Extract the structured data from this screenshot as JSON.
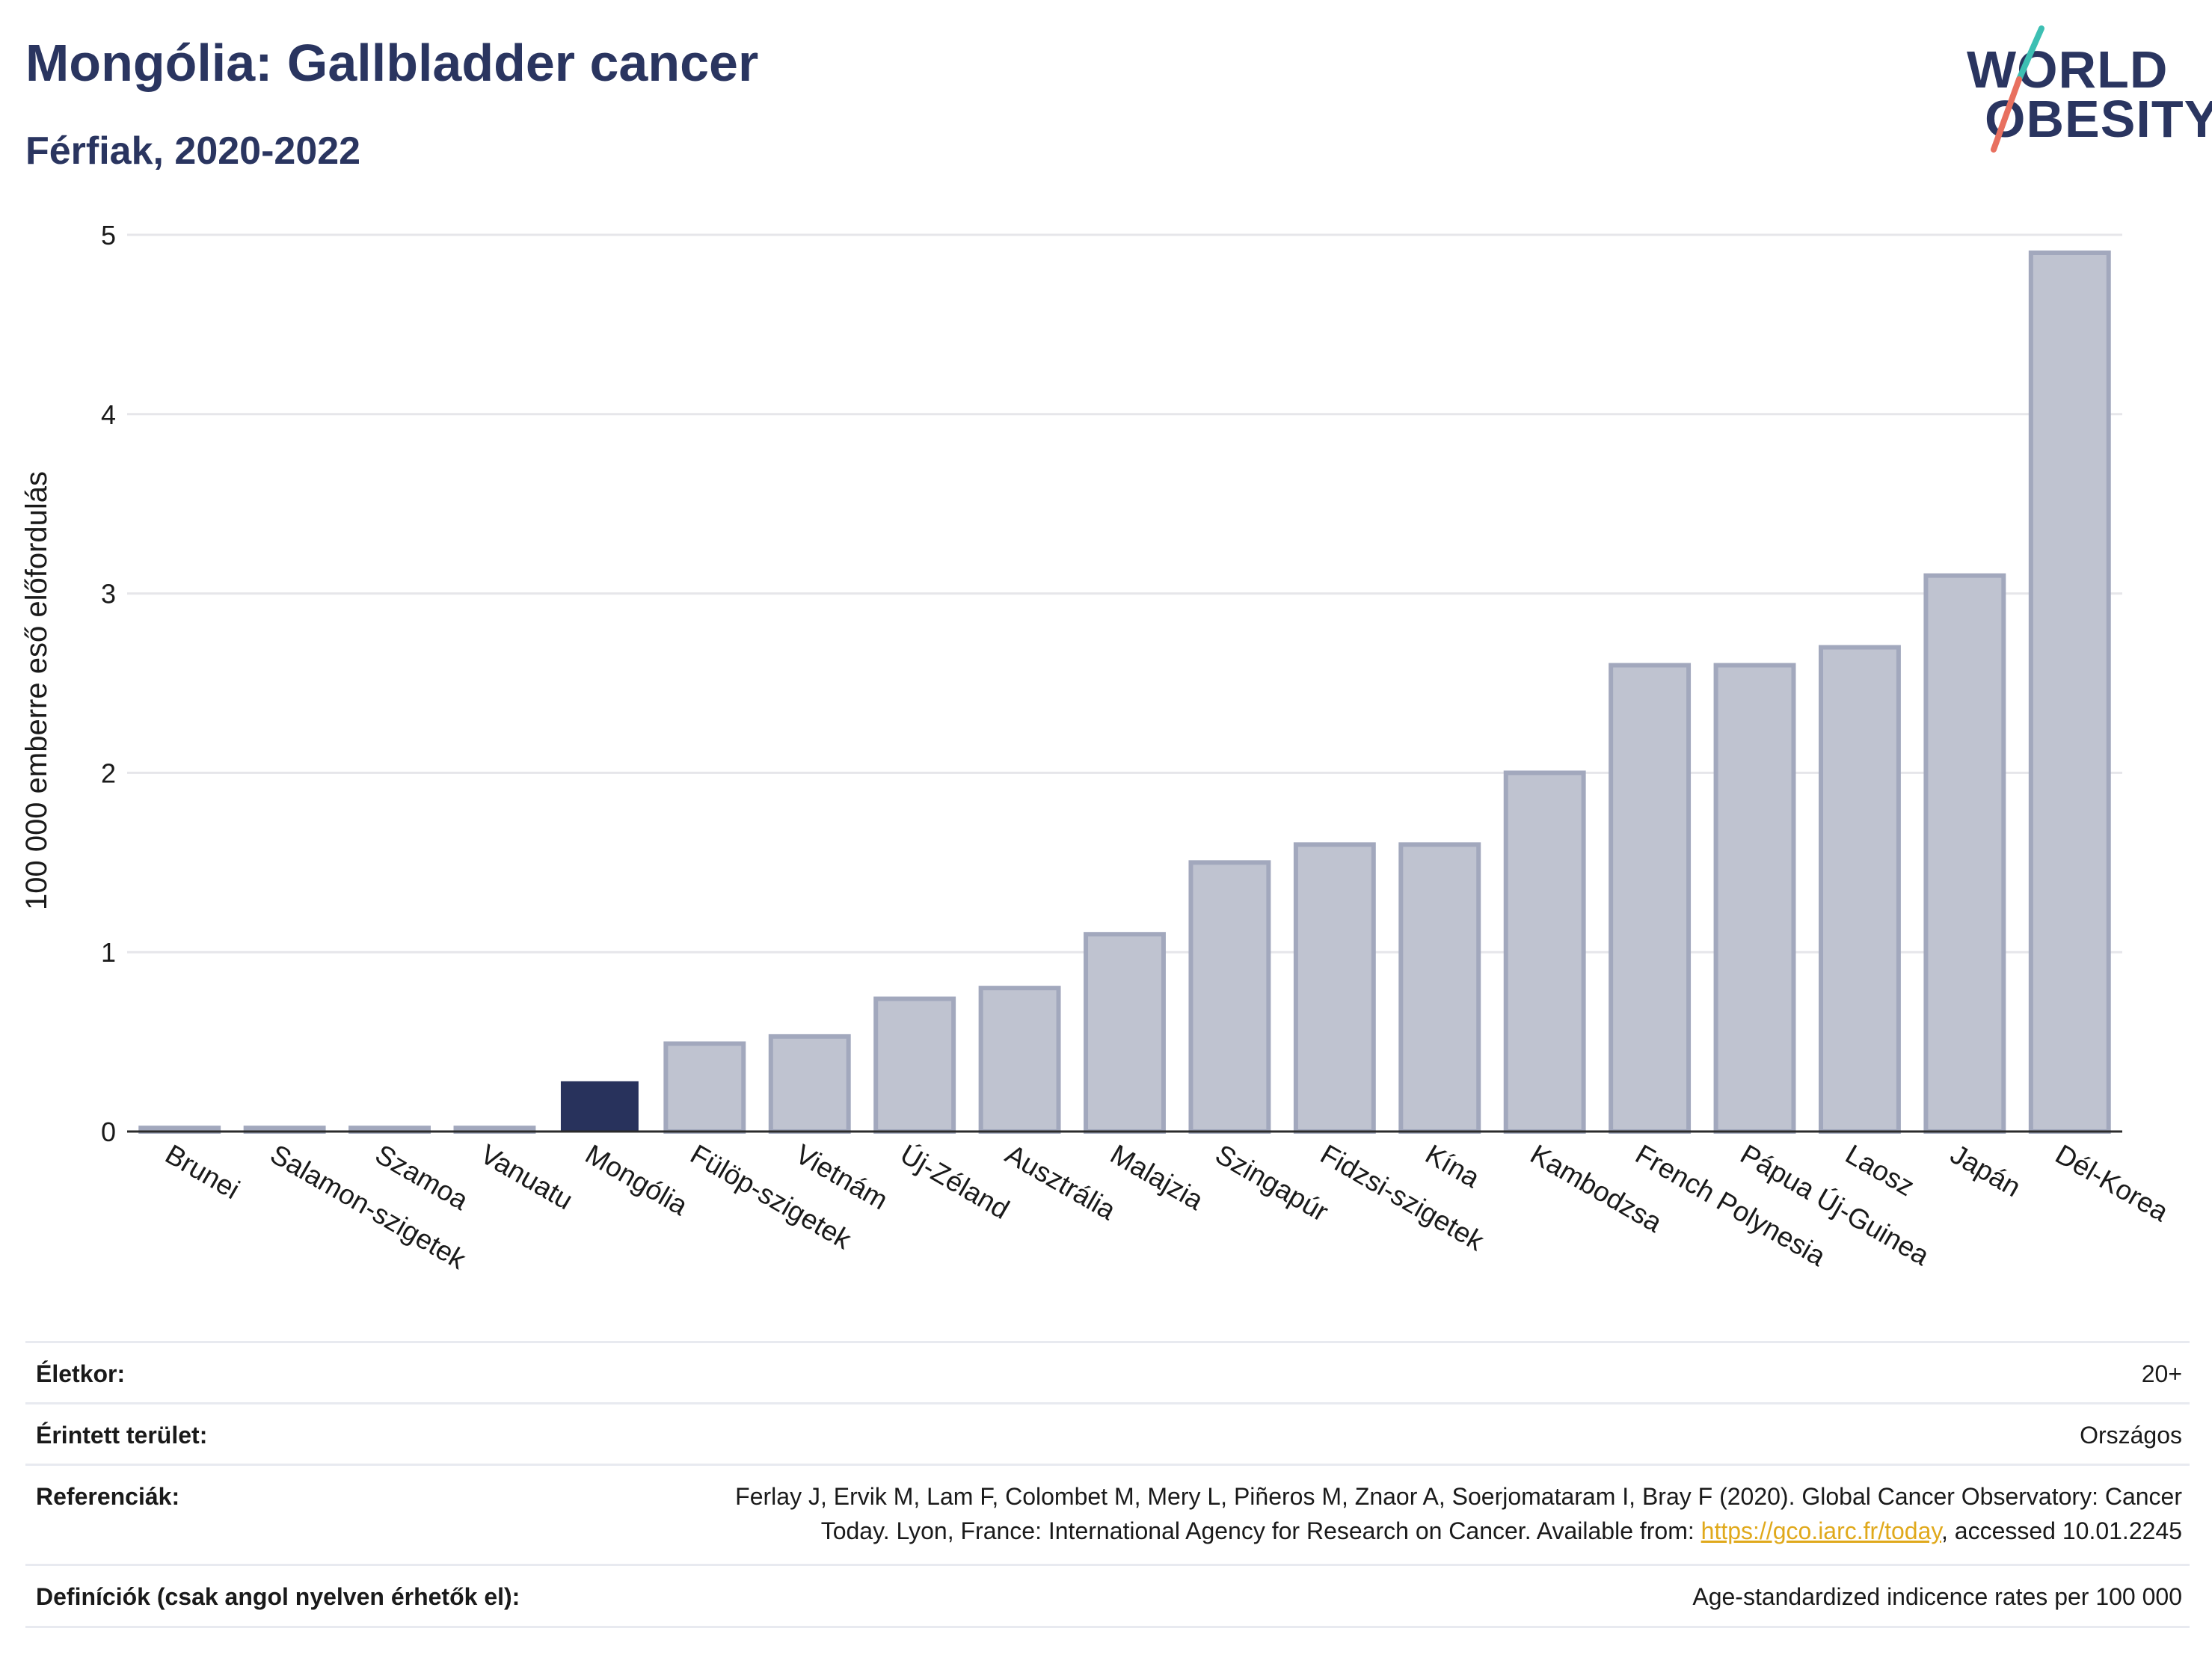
{
  "header": {
    "title": "Mongólia: Gallbladder cancer",
    "subtitle": "Férfiak, 2020-2022"
  },
  "logo": {
    "line1": "WORLD",
    "line2": "OBESITY"
  },
  "colors": {
    "highlight": "#28325c",
    "bar_fill": "#bfc3d0",
    "bar_stroke": "#a2a8bd",
    "grid": "#e6e6ea",
    "logo_teal": "#3dbfb3",
    "logo_red": "#e8705f"
  },
  "chart_data": {
    "type": "bar",
    "ylabel": "100 000 emberre eső előfordulás",
    "ylim": [
      0,
      5
    ],
    "yticks": [
      0,
      1,
      2,
      3,
      4,
      5
    ],
    "grid": true,
    "highlight": "Mongólia",
    "categories": [
      "Brunei",
      "Salamon-szigetek",
      "Szamoa",
      "Vanuatu",
      "Mongólia",
      "Fülöp-szigetek",
      "Vietnám",
      "Új-Zéland",
      "Ausztrália",
      "Malajzia",
      "Szingapúr",
      "Fidzsi-szigetek",
      "Kína",
      "Kambodzsa",
      "French Polynesia",
      "Pápua Új-Guinea",
      "Laosz",
      "Japán",
      "Dél-Korea"
    ],
    "values": [
      0.02,
      0.02,
      0.02,
      0.02,
      0.28,
      0.49,
      0.53,
      0.74,
      0.8,
      1.1,
      1.5,
      1.6,
      1.6,
      2.0,
      2.6,
      2.6,
      2.7,
      3.1,
      4.9
    ]
  },
  "info": {
    "rows": [
      {
        "label": "Életkor:",
        "value": "20+"
      },
      {
        "label": "Érintett terület:",
        "value": "Országos"
      },
      {
        "label": "Referenciák:",
        "value_line1": "Ferlay J, Ervik M, Lam F, Colombet M, Mery L, Piñeros M, Znaor A, Soerjomataram I, Bray F (2020). Global Cancer Observatory: Cancer",
        "value_line2_pre": "Today. Lyon, France: International Agency for Research on Cancer. Available from: ",
        "value_link": "https://gco.iarc.fr/today",
        "value_line2_post": ", accessed 10.01.2245"
      },
      {
        "label": "Definíciók (csak angol nyelven érhetők el):",
        "value": "Age-standardized indicence rates per 100 000"
      }
    ]
  }
}
